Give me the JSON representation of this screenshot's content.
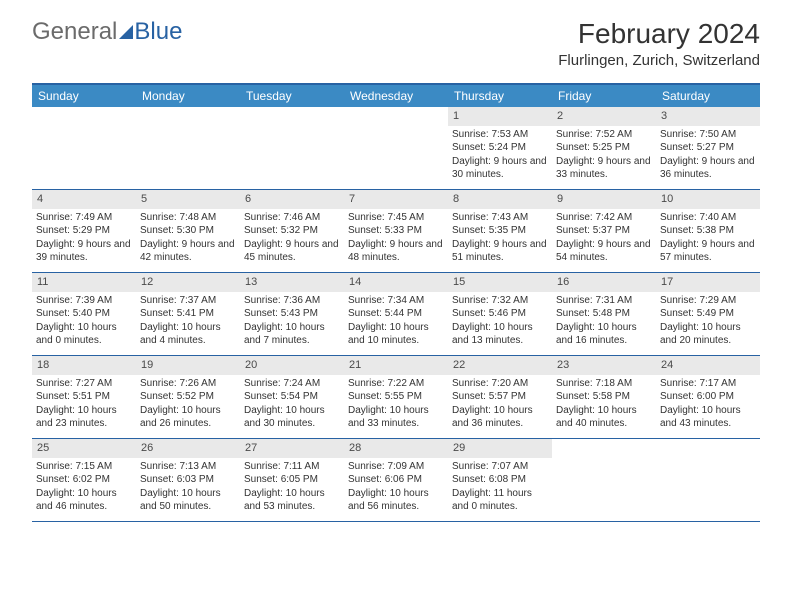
{
  "logo": {
    "part1": "General",
    "part2": "Blue"
  },
  "title": {
    "month": "February 2024",
    "location": "Flurlingen, Zurich, Switzerland"
  },
  "dayHeaders": [
    "Sunday",
    "Monday",
    "Tuesday",
    "Wednesday",
    "Thursday",
    "Friday",
    "Saturday"
  ],
  "colors": {
    "headerBg": "#3b8ac4",
    "borderBlue": "#2862a3",
    "dayNumBg": "#e9e9e9"
  },
  "weeks": [
    [
      {
        "empty": true
      },
      {
        "empty": true
      },
      {
        "empty": true
      },
      {
        "empty": true
      },
      {
        "n": "1",
        "sr": "Sunrise: 7:53 AM",
        "ss": "Sunset: 5:24 PM",
        "dl": "Daylight: 9 hours and 30 minutes."
      },
      {
        "n": "2",
        "sr": "Sunrise: 7:52 AM",
        "ss": "Sunset: 5:25 PM",
        "dl": "Daylight: 9 hours and 33 minutes."
      },
      {
        "n": "3",
        "sr": "Sunrise: 7:50 AM",
        "ss": "Sunset: 5:27 PM",
        "dl": "Daylight: 9 hours and 36 minutes."
      }
    ],
    [
      {
        "n": "4",
        "sr": "Sunrise: 7:49 AM",
        "ss": "Sunset: 5:29 PM",
        "dl": "Daylight: 9 hours and 39 minutes."
      },
      {
        "n": "5",
        "sr": "Sunrise: 7:48 AM",
        "ss": "Sunset: 5:30 PM",
        "dl": "Daylight: 9 hours and 42 minutes."
      },
      {
        "n": "6",
        "sr": "Sunrise: 7:46 AM",
        "ss": "Sunset: 5:32 PM",
        "dl": "Daylight: 9 hours and 45 minutes."
      },
      {
        "n": "7",
        "sr": "Sunrise: 7:45 AM",
        "ss": "Sunset: 5:33 PM",
        "dl": "Daylight: 9 hours and 48 minutes."
      },
      {
        "n": "8",
        "sr": "Sunrise: 7:43 AM",
        "ss": "Sunset: 5:35 PM",
        "dl": "Daylight: 9 hours and 51 minutes."
      },
      {
        "n": "9",
        "sr": "Sunrise: 7:42 AM",
        "ss": "Sunset: 5:37 PM",
        "dl": "Daylight: 9 hours and 54 minutes."
      },
      {
        "n": "10",
        "sr": "Sunrise: 7:40 AM",
        "ss": "Sunset: 5:38 PM",
        "dl": "Daylight: 9 hours and 57 minutes."
      }
    ],
    [
      {
        "n": "11",
        "sr": "Sunrise: 7:39 AM",
        "ss": "Sunset: 5:40 PM",
        "dl": "Daylight: 10 hours and 0 minutes."
      },
      {
        "n": "12",
        "sr": "Sunrise: 7:37 AM",
        "ss": "Sunset: 5:41 PM",
        "dl": "Daylight: 10 hours and 4 minutes."
      },
      {
        "n": "13",
        "sr": "Sunrise: 7:36 AM",
        "ss": "Sunset: 5:43 PM",
        "dl": "Daylight: 10 hours and 7 minutes."
      },
      {
        "n": "14",
        "sr": "Sunrise: 7:34 AM",
        "ss": "Sunset: 5:44 PM",
        "dl": "Daylight: 10 hours and 10 minutes."
      },
      {
        "n": "15",
        "sr": "Sunrise: 7:32 AM",
        "ss": "Sunset: 5:46 PM",
        "dl": "Daylight: 10 hours and 13 minutes."
      },
      {
        "n": "16",
        "sr": "Sunrise: 7:31 AM",
        "ss": "Sunset: 5:48 PM",
        "dl": "Daylight: 10 hours and 16 minutes."
      },
      {
        "n": "17",
        "sr": "Sunrise: 7:29 AM",
        "ss": "Sunset: 5:49 PM",
        "dl": "Daylight: 10 hours and 20 minutes."
      }
    ],
    [
      {
        "n": "18",
        "sr": "Sunrise: 7:27 AM",
        "ss": "Sunset: 5:51 PM",
        "dl": "Daylight: 10 hours and 23 minutes."
      },
      {
        "n": "19",
        "sr": "Sunrise: 7:26 AM",
        "ss": "Sunset: 5:52 PM",
        "dl": "Daylight: 10 hours and 26 minutes."
      },
      {
        "n": "20",
        "sr": "Sunrise: 7:24 AM",
        "ss": "Sunset: 5:54 PM",
        "dl": "Daylight: 10 hours and 30 minutes."
      },
      {
        "n": "21",
        "sr": "Sunrise: 7:22 AM",
        "ss": "Sunset: 5:55 PM",
        "dl": "Daylight: 10 hours and 33 minutes."
      },
      {
        "n": "22",
        "sr": "Sunrise: 7:20 AM",
        "ss": "Sunset: 5:57 PM",
        "dl": "Daylight: 10 hours and 36 minutes."
      },
      {
        "n": "23",
        "sr": "Sunrise: 7:18 AM",
        "ss": "Sunset: 5:58 PM",
        "dl": "Daylight: 10 hours and 40 minutes."
      },
      {
        "n": "24",
        "sr": "Sunrise: 7:17 AM",
        "ss": "Sunset: 6:00 PM",
        "dl": "Daylight: 10 hours and 43 minutes."
      }
    ],
    [
      {
        "n": "25",
        "sr": "Sunrise: 7:15 AM",
        "ss": "Sunset: 6:02 PM",
        "dl": "Daylight: 10 hours and 46 minutes."
      },
      {
        "n": "26",
        "sr": "Sunrise: 7:13 AM",
        "ss": "Sunset: 6:03 PM",
        "dl": "Daylight: 10 hours and 50 minutes."
      },
      {
        "n": "27",
        "sr": "Sunrise: 7:11 AM",
        "ss": "Sunset: 6:05 PM",
        "dl": "Daylight: 10 hours and 53 minutes."
      },
      {
        "n": "28",
        "sr": "Sunrise: 7:09 AM",
        "ss": "Sunset: 6:06 PM",
        "dl": "Daylight: 10 hours and 56 minutes."
      },
      {
        "n": "29",
        "sr": "Sunrise: 7:07 AM",
        "ss": "Sunset: 6:08 PM",
        "dl": "Daylight: 11 hours and 0 minutes."
      },
      {
        "empty": true
      },
      {
        "empty": true
      }
    ]
  ]
}
